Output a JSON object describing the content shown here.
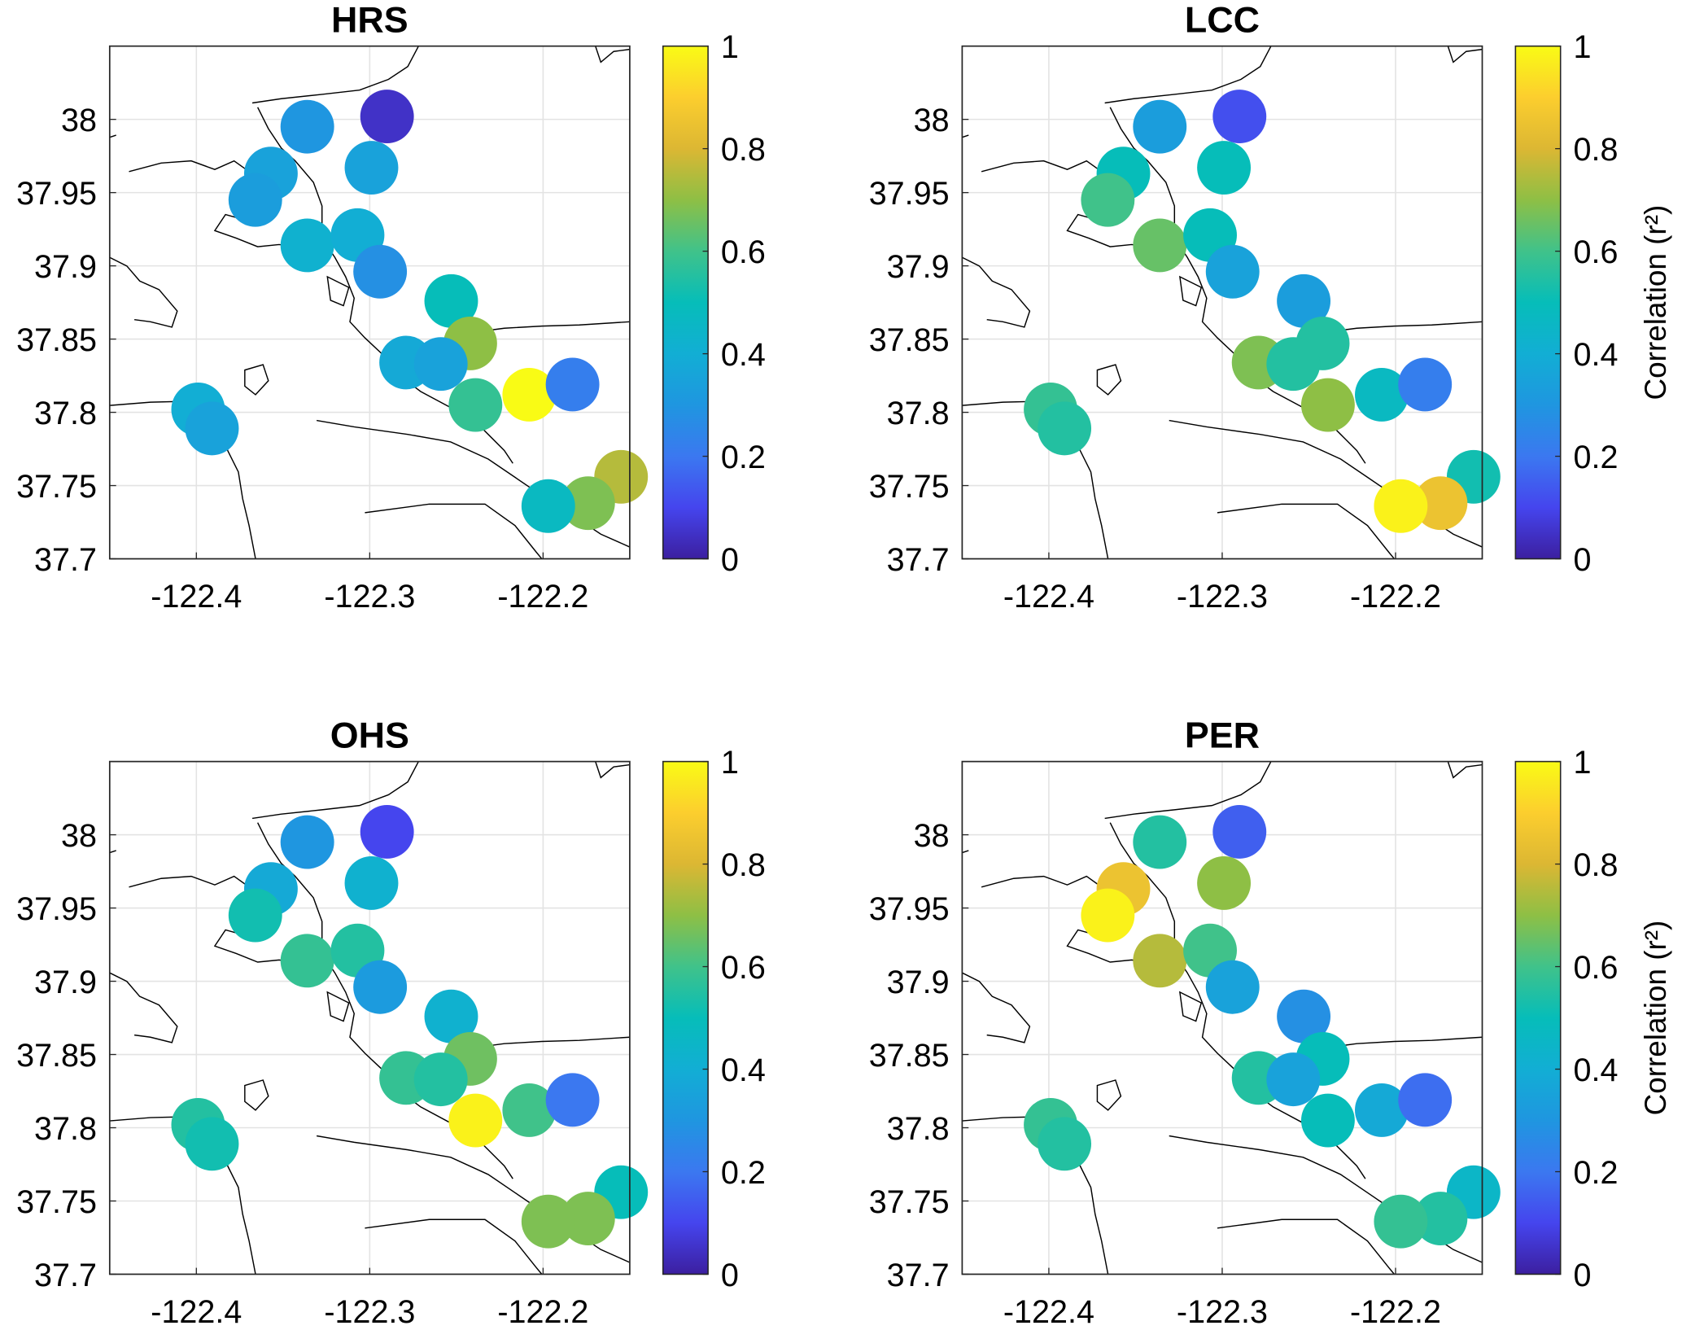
{
  "chart_data": [
    {
      "type": "scatter",
      "title": "HRS",
      "xlim": [
        -122.45,
        -122.15
      ],
      "ylim": [
        37.7,
        38.05
      ],
      "xticks": [
        -122.4,
        -122.3,
        -122.2
      ],
      "xtick_labels": [
        "-122.4",
        "-122.3",
        "-122.2"
      ],
      "yticks": [
        37.7,
        37.75,
        37.8,
        37.85,
        37.9,
        37.95,
        38
      ],
      "ytick_labels": [
        "37.7",
        "37.75",
        "37.8",
        "37.85",
        "37.9",
        "37.95",
        "38"
      ],
      "grid": true,
      "colorbar": {
        "range": [
          0,
          1
        ],
        "ticks": [
          "0",
          "0.2",
          "0.4",
          "0.6",
          "0.8",
          "1"
        ],
        "label": ""
      },
      "x": [
        -122.29,
        -122.336,
        -122.299,
        -122.357,
        -122.366,
        -122.336,
        -122.307,
        -122.294,
        -122.253,
        -122.242,
        -122.279,
        -122.259,
        -122.239,
        -122.208,
        -122.183,
        -122.399,
        -122.391,
        -122.155,
        -122.174,
        -122.197
      ],
      "y": [
        38.002,
        37.995,
        37.967,
        37.963,
        37.945,
        37.914,
        37.921,
        37.896,
        37.876,
        37.847,
        37.834,
        37.833,
        37.805,
        37.812,
        37.819,
        37.802,
        37.789,
        37.756,
        37.738,
        37.736
      ],
      "values": [
        0.05,
        0.3,
        0.35,
        0.35,
        0.33,
        0.42,
        0.4,
        0.28,
        0.5,
        0.7,
        0.38,
        0.35,
        0.58,
        1.0,
        0.22,
        0.4,
        0.35,
        0.75,
        0.68,
        0.47
      ]
    },
    {
      "type": "scatter",
      "title": "LCC",
      "xlim": [
        -122.45,
        -122.15
      ],
      "ylim": [
        37.7,
        38.05
      ],
      "xticks": [
        -122.4,
        -122.3,
        -122.2
      ],
      "xtick_labels": [
        "-122.4",
        "-122.3",
        "-122.2"
      ],
      "yticks": [
        37.7,
        37.75,
        37.8,
        37.85,
        37.9,
        37.95,
        38
      ],
      "ytick_labels": [
        "37.7",
        "37.75",
        "37.8",
        "37.85",
        "37.9",
        "37.95",
        "38"
      ],
      "grid": true,
      "colorbar": {
        "range": [
          0,
          1
        ],
        "ticks": [
          "0",
          "0.2",
          "0.4",
          "0.6",
          "0.8",
          "1"
        ],
        "label": "Correlation (r²)"
      },
      "x": [
        -122.29,
        -122.336,
        -122.299,
        -122.357,
        -122.366,
        -122.336,
        -122.307,
        -122.294,
        -122.253,
        -122.242,
        -122.279,
        -122.259,
        -122.239,
        -122.208,
        -122.183,
        -122.399,
        -122.391,
        -122.155,
        -122.174,
        -122.197
      ],
      "y": [
        38.002,
        37.995,
        37.967,
        37.963,
        37.945,
        37.914,
        37.921,
        37.896,
        37.876,
        37.847,
        37.834,
        37.833,
        37.805,
        37.812,
        37.819,
        37.802,
        37.789,
        37.756,
        37.738,
        37.736
      ],
      "values": [
        0.12,
        0.33,
        0.5,
        0.5,
        0.6,
        0.65,
        0.5,
        0.35,
        0.33,
        0.55,
        0.68,
        0.55,
        0.7,
        0.47,
        0.22,
        0.58,
        0.55,
        0.52,
        0.85,
        0.98
      ]
    },
    {
      "type": "scatter",
      "title": "OHS",
      "xlim": [
        -122.45,
        -122.15
      ],
      "ylim": [
        37.7,
        38.05
      ],
      "xticks": [
        -122.4,
        -122.3,
        -122.2
      ],
      "xtick_labels": [
        "-122.4",
        "-122.3",
        "-122.2"
      ],
      "yticks": [
        37.7,
        37.75,
        37.8,
        37.85,
        37.9,
        37.95,
        38
      ],
      "ytick_labels": [
        "37.7",
        "37.75",
        "37.8",
        "37.85",
        "37.9",
        "37.95",
        "38"
      ],
      "grid": true,
      "colorbar": {
        "range": [
          0,
          1
        ],
        "ticks": [
          "0",
          "0.2",
          "0.4",
          "0.6",
          "0.8",
          "1"
        ],
        "label": ""
      },
      "x": [
        -122.29,
        -122.336,
        -122.299,
        -122.357,
        -122.366,
        -122.336,
        -122.307,
        -122.294,
        -122.253,
        -122.242,
        -122.279,
        -122.259,
        -122.239,
        -122.208,
        -122.183,
        -122.399,
        -122.391,
        -122.155,
        -122.174,
        -122.197
      ],
      "y": [
        38.002,
        37.995,
        37.967,
        37.963,
        37.945,
        37.914,
        37.921,
        37.896,
        37.876,
        37.847,
        37.834,
        37.833,
        37.805,
        37.812,
        37.819,
        37.802,
        37.789,
        37.756,
        37.738,
        37.736
      ],
      "values": [
        0.1,
        0.3,
        0.42,
        0.38,
        0.52,
        0.58,
        0.55,
        0.32,
        0.42,
        0.66,
        0.58,
        0.55,
        0.98,
        0.6,
        0.2,
        0.55,
        0.52,
        0.5,
        0.68,
        0.68
      ]
    },
    {
      "type": "scatter",
      "title": "PER",
      "xlim": [
        -122.45,
        -122.15
      ],
      "ylim": [
        37.7,
        38.05
      ],
      "xticks": [
        -122.4,
        -122.3,
        -122.2
      ],
      "xtick_labels": [
        "-122.4",
        "-122.3",
        "-122.2"
      ],
      "yticks": [
        37.7,
        37.75,
        37.8,
        37.85,
        37.9,
        37.95,
        38
      ],
      "ytick_labels": [
        "37.7",
        "37.75",
        "37.8",
        "37.85",
        "37.9",
        "37.95",
        "38"
      ],
      "grid": true,
      "colorbar": {
        "range": [
          0,
          1
        ],
        "ticks": [
          "0",
          "0.2",
          "0.4",
          "0.6",
          "0.8",
          "1"
        ],
        "label": "Correlation (r²)"
      },
      "x": [
        -122.29,
        -122.336,
        -122.299,
        -122.357,
        -122.366,
        -122.336,
        -122.307,
        -122.294,
        -122.253,
        -122.242,
        -122.279,
        -122.259,
        -122.239,
        -122.208,
        -122.183,
        -122.399,
        -122.391,
        -122.155,
        -122.174,
        -122.197
      ],
      "y": [
        38.002,
        37.995,
        37.967,
        37.963,
        37.945,
        37.914,
        37.921,
        37.896,
        37.876,
        37.847,
        37.834,
        37.833,
        37.805,
        37.812,
        37.819,
        37.802,
        37.789,
        37.756,
        37.738,
        37.736
      ],
      "values": [
        0.15,
        0.55,
        0.7,
        0.85,
        0.98,
        0.75,
        0.6,
        0.35,
        0.28,
        0.5,
        0.55,
        0.35,
        0.5,
        0.38,
        0.18,
        0.58,
        0.55,
        0.45,
        0.55,
        0.58
      ]
    }
  ]
}
